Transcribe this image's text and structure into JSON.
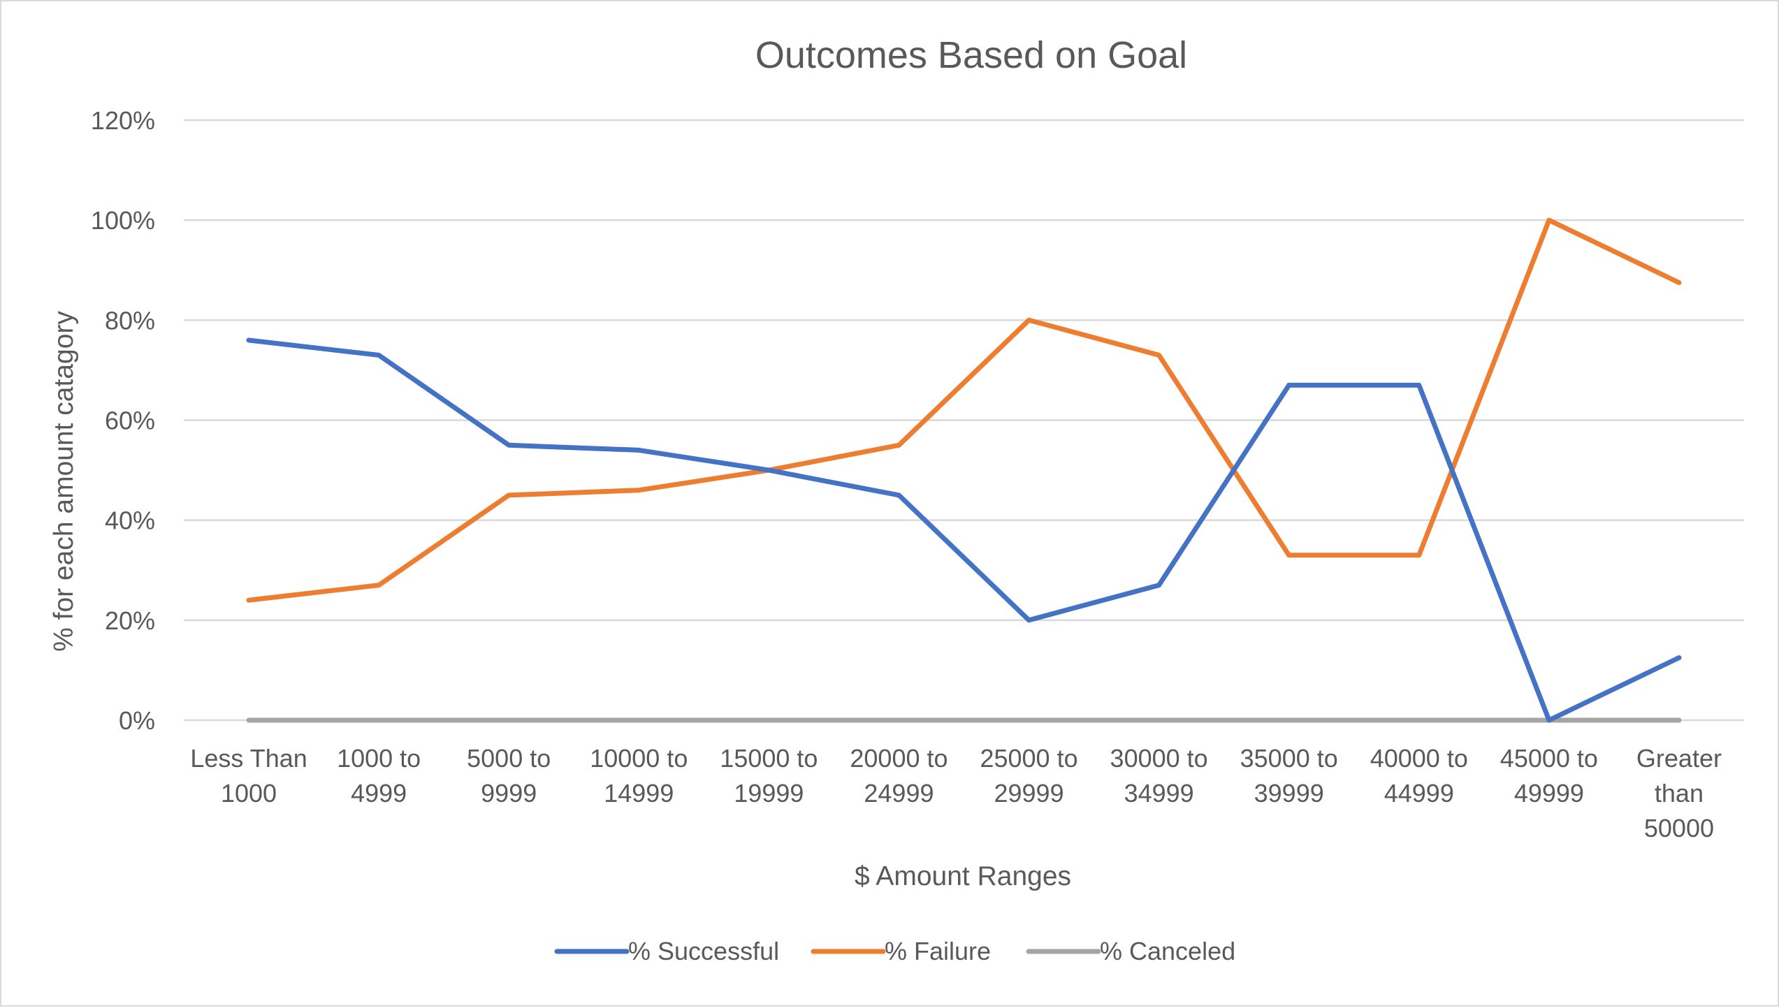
{
  "chart_data": {
    "type": "line",
    "title": "Outcomes Based on Goal",
    "xlabel": "$ Amount Ranges",
    "ylabel": "% for each amount catagory",
    "ylim": [
      0,
      1.2
    ],
    "yticks": [
      0,
      0.2,
      0.4,
      0.6,
      0.8,
      1.0,
      1.2
    ],
    "ytick_labels": [
      "0%",
      "20%",
      "40%",
      "60%",
      "80%",
      "100%",
      "120%"
    ],
    "categories": [
      "Less Than 1000",
      "1000 to 4999",
      "5000 to 9999",
      "10000 to 14999",
      "15000 to 19999",
      "20000 to 24999",
      "25000 to 29999",
      "30000 to 34999",
      "35000 to 39999",
      "40000 to 44999",
      "45000 to 49999",
      "Greater than 50000"
    ],
    "category_lines": [
      [
        "Less Than",
        "1000"
      ],
      [
        "1000 to",
        "4999"
      ],
      [
        "5000 to",
        "9999"
      ],
      [
        "10000 to",
        "14999"
      ],
      [
        "15000 to",
        "19999"
      ],
      [
        "20000 to",
        "24999"
      ],
      [
        "25000 to",
        "29999"
      ],
      [
        "30000 to",
        "34999"
      ],
      [
        "35000 to",
        "39999"
      ],
      [
        "40000 to",
        "44999"
      ],
      [
        "45000 to",
        "49999"
      ],
      [
        "Greater",
        "than",
        "50000"
      ]
    ],
    "series": [
      {
        "name": "% Successful",
        "color": "#4472c4",
        "values": [
          0.76,
          0.73,
          0.55,
          0.54,
          0.5,
          0.45,
          0.2,
          0.27,
          0.67,
          0.67,
          0.0,
          0.125
        ]
      },
      {
        "name": "% Failure",
        "color": "#ed7d31",
        "values": [
          0.24,
          0.27,
          0.45,
          0.46,
          0.5,
          0.55,
          0.8,
          0.73,
          0.33,
          0.33,
          1.0,
          0.875
        ]
      },
      {
        "name": "% Canceled",
        "color": "#a5a5a5",
        "values": [
          0,
          0,
          0,
          0,
          0,
          0,
          0,
          0,
          0,
          0,
          0,
          0
        ]
      }
    ],
    "grid": true,
    "legend_position": "bottom"
  }
}
